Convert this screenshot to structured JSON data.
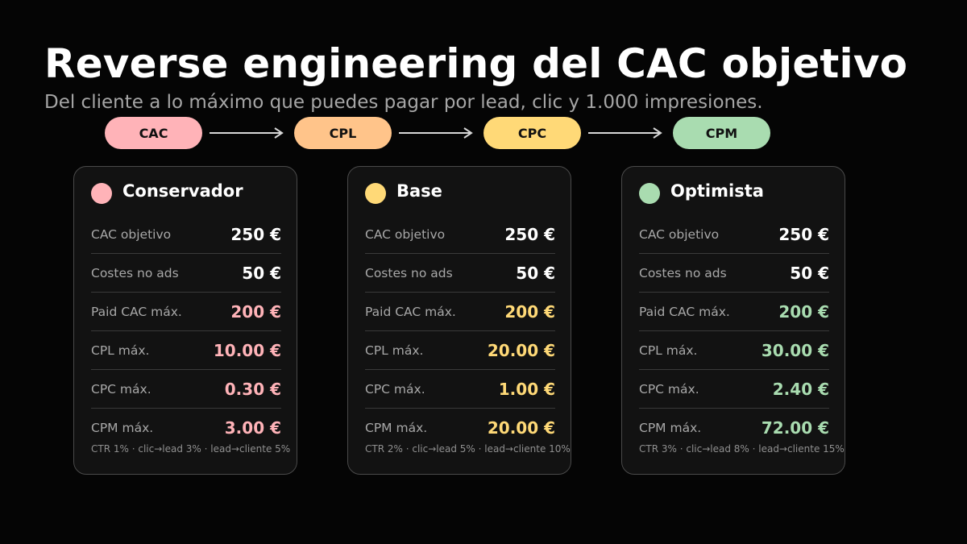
{
  "header": {
    "title": "Reverse engineering del CAC objetivo",
    "subtitle": "Del cliente a lo máximo que puedes pagar por lead, clic y 1.000 impresiones."
  },
  "flow": {
    "steps": [
      {
        "label": "CAC",
        "color": "#ffb3b8"
      },
      {
        "label": "CPL",
        "color": "#ffc48a"
      },
      {
        "label": "CPC",
        "color": "#ffd977"
      },
      {
        "label": "CPM",
        "color": "#a9dcb0"
      }
    ],
    "arrow_color": "#d8d8d8"
  },
  "cards": [
    {
      "name": "Conservador",
      "color": "#ffb3b8",
      "rows": [
        {
          "label": "CAC objetivo",
          "value": "250 €"
        },
        {
          "label": "Costes no ads",
          "value": "50 €"
        },
        {
          "label": "Paid CAC máx.",
          "value": "200 €"
        },
        {
          "label": "CPL máx.",
          "value": "10.00 €"
        },
        {
          "label": "CPC máx.",
          "value": "0.30 €"
        },
        {
          "label": "CPM máx.",
          "value": "3.00 €"
        }
      ],
      "note": "CTR 1% · clic→lead 3% · lead→cliente 5%"
    },
    {
      "name": "Base",
      "color": "#ffd977",
      "rows": [
        {
          "label": "CAC objetivo",
          "value": "250 €"
        },
        {
          "label": "Costes no ads",
          "value": "50 €"
        },
        {
          "label": "Paid CAC máx.",
          "value": "200 €"
        },
        {
          "label": "CPL máx.",
          "value": "20.00 €"
        },
        {
          "label": "CPC máx.",
          "value": "1.00 €"
        },
        {
          "label": "CPM máx.",
          "value": "20.00 €"
        }
      ],
      "note": "CTR 2% · clic→lead 5% · lead→cliente 10%"
    },
    {
      "name": "Optimista",
      "color": "#a9dcb0",
      "rows": [
        {
          "label": "CAC objetivo",
          "value": "250 €"
        },
        {
          "label": "Costes no ads",
          "value": "50 €"
        },
        {
          "label": "Paid CAC máx.",
          "value": "200 €"
        },
        {
          "label": "CPL máx.",
          "value": "30.00 €"
        },
        {
          "label": "CPC máx.",
          "value": "2.40 €"
        },
        {
          "label": "CPM máx.",
          "value": "72.00 €"
        }
      ],
      "note": "CTR 3% · clic→lead 8% · lead→cliente 15%"
    }
  ]
}
